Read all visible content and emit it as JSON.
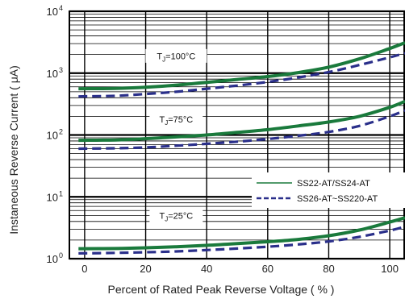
{
  "chart_data": {
    "type": "line",
    "xlabel": "Percent of Rated Peak Reverse Voltage ( % )",
    "ylabel": "Instaneous Reverse Current ( μA)",
    "xlim": [
      -5,
      105
    ],
    "ylim": [
      1,
      10000
    ],
    "yscale": "log",
    "x_ticks": [
      0,
      20,
      40,
      60,
      80,
      100
    ],
    "x_tick_labels": [
      "0",
      "20",
      "40",
      "60",
      "80",
      "100"
    ],
    "y_ticks": [
      1,
      10,
      100,
      1000,
      10000
    ],
    "y_tick_labels": [
      {
        "base": "10",
        "exp": "0"
      },
      {
        "base": "10",
        "exp": "1"
      },
      {
        "base": "10",
        "exp": "2"
      },
      {
        "base": "10",
        "exp": "3"
      },
      {
        "base": "10",
        "exp": "4"
      }
    ],
    "grid": true,
    "colors": {
      "ss22_series": "#1a7a3c",
      "ss26_series": "#2a2f8a",
      "grid": "#000000",
      "watermark": "#e31b1b"
    },
    "series": [
      {
        "name": "SS22-AT/SS24-AT",
        "group": "TJ=100°C",
        "style": "solid",
        "x": [
          -2,
          10,
          20,
          30,
          40,
          50,
          60,
          70,
          80,
          90,
          100,
          105
        ],
        "y": [
          560,
          565,
          590,
          640,
          710,
          790,
          880,
          1020,
          1250,
          1700,
          2500,
          3100
        ]
      },
      {
        "name": "SS26-AT~SS220-AT",
        "group": "TJ=100°C",
        "style": "dashed",
        "x": [
          -2,
          10,
          20,
          30,
          40,
          50,
          60,
          70,
          80,
          90,
          100,
          105
        ],
        "y": [
          420,
          430,
          460,
          500,
          560,
          630,
          720,
          850,
          1040,
          1350,
          1800,
          2100
        ]
      },
      {
        "name": "SS22-AT/SS24-AT",
        "group": "TJ=75°C",
        "style": "solid",
        "x": [
          -2,
          10,
          20,
          30,
          40,
          50,
          60,
          70,
          80,
          90,
          100,
          105
        ],
        "y": [
          82,
          83,
          87,
          93,
          100,
          110,
          122,
          140,
          162,
          200,
          280,
          350
        ]
      },
      {
        "name": "SS26-AT~SS220-AT",
        "group": "TJ=75°C",
        "style": "dashed",
        "x": [
          -2,
          10,
          20,
          30,
          40,
          50,
          60,
          70,
          80,
          90,
          100,
          105
        ],
        "y": [
          60,
          61,
          63,
          67,
          72,
          78,
          86,
          97,
          112,
          140,
          200,
          250
        ]
      },
      {
        "name": "SS22-AT/SS24-AT",
        "group": "TJ=25°C",
        "style": "solid",
        "x": [
          -2,
          10,
          20,
          30,
          40,
          50,
          60,
          70,
          80,
          90,
          100,
          105
        ],
        "y": [
          1.45,
          1.46,
          1.5,
          1.56,
          1.64,
          1.75,
          1.88,
          2.05,
          2.35,
          2.9,
          3.9,
          4.6
        ]
      },
      {
        "name": "SS26-AT~SS220-AT",
        "group": "TJ=25°C",
        "style": "dashed",
        "x": [
          -2,
          10,
          20,
          30,
          40,
          50,
          60,
          70,
          80,
          90,
          100,
          105
        ],
        "y": [
          1.22,
          1.24,
          1.27,
          1.31,
          1.38,
          1.46,
          1.56,
          1.7,
          1.9,
          2.25,
          2.85,
          3.3
        ]
      }
    ],
    "annotations": [
      {
        "text_main": "T",
        "text_sub": "J",
        "text_rest": "=100°C",
        "x": 30,
        "y": 1900
      },
      {
        "text_main": "T",
        "text_sub": "J",
        "text_rest": "=75°C",
        "x": 30,
        "y": 180
      },
      {
        "text_main": "T",
        "text_sub": "J",
        "text_rest": "=25°C",
        "x": 30,
        "y": 5
      }
    ],
    "legend": {
      "placement": "right-middle",
      "entries": [
        {
          "label": "SS22-AT/SS24-AT",
          "style": "solid"
        },
        {
          "label": "SS26-AT~SS220-AT",
          "style": "dashed"
        }
      ]
    }
  }
}
